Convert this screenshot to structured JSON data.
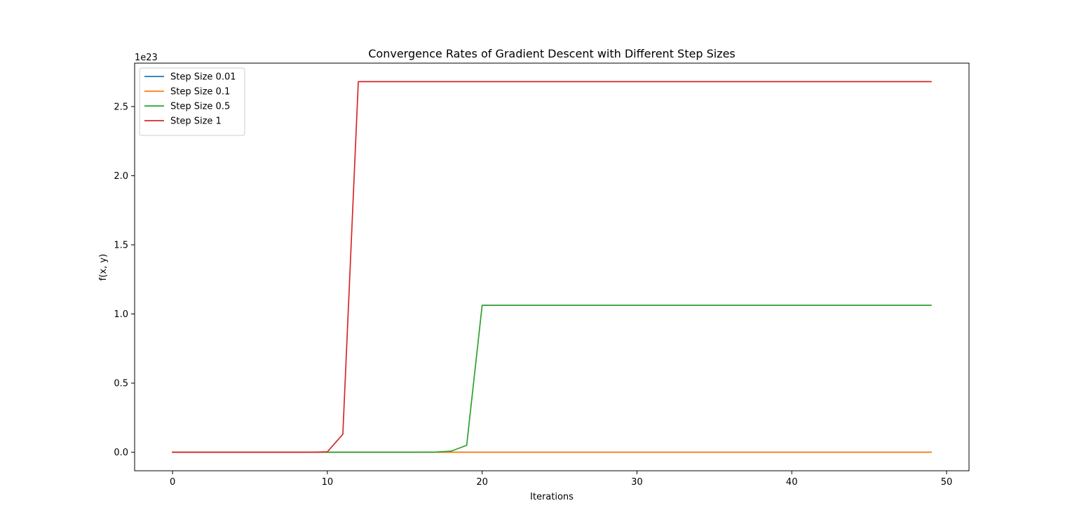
{
  "chart_data": {
    "type": "line",
    "title": "Convergence Rates of Gradient Descent with Different Step Sizes",
    "xlabel": "Iterations",
    "ylabel": "f(x, y)",
    "y_offset_label": "1e23",
    "y_scale": 1e+23,
    "xlim": [
      -2.45,
      51.45
    ],
    "ylim": [
      -0.134,
      2.814
    ],
    "x_ticks": [
      0,
      10,
      20,
      30,
      40,
      50
    ],
    "x_tick_labels": [
      "0",
      "10",
      "20",
      "30",
      "40",
      "50"
    ],
    "y_ticks": [
      0,
      0.5,
      1.0,
      1.5,
      2.0,
      2.5
    ],
    "y_tick_labels": [
      "0.0",
      "0.5",
      "1.0",
      "1.5",
      "2.0",
      "2.5"
    ],
    "grid": false,
    "legend_position": "upper-left",
    "x": [
      0,
      1,
      2,
      3,
      4,
      5,
      6,
      7,
      8,
      9,
      10,
      11,
      12,
      13,
      14,
      15,
      16,
      17,
      18,
      19,
      20,
      21,
      22,
      23,
      24,
      25,
      26,
      27,
      28,
      29,
      30,
      31,
      32,
      33,
      34,
      35,
      36,
      37,
      38,
      39,
      40,
      41,
      42,
      43,
      44,
      45,
      46,
      47,
      48,
      49
    ],
    "series": [
      {
        "name": "Step Size 0.01",
        "color": "#1f77b4",
        "values": [
          0,
          0,
          0,
          0,
          0,
          0,
          0,
          0,
          0,
          0,
          0,
          0,
          0,
          0,
          0,
          0,
          0,
          0,
          0,
          0,
          0,
          0,
          0,
          0,
          0,
          0,
          0,
          0,
          0,
          0,
          0,
          0,
          0,
          0,
          0,
          0,
          0,
          0,
          0,
          0,
          0,
          0,
          0,
          0,
          0,
          0,
          0,
          0,
          0,
          0
        ]
      },
      {
        "name": "Step Size 0.1",
        "color": "#ff7f0e",
        "values": [
          0,
          0,
          0,
          0,
          0,
          0,
          0,
          0,
          0,
          0,
          0,
          0,
          0,
          0,
          0,
          0,
          0,
          0,
          0,
          0,
          0,
          0,
          0,
          0,
          0,
          0,
          0,
          0,
          0,
          0,
          0,
          0,
          0,
          0,
          0,
          0,
          0,
          0,
          0,
          0,
          0,
          0,
          0,
          0,
          0,
          0,
          0,
          0,
          0,
          0
        ]
      },
      {
        "name": "Step Size 0.5",
        "color": "#2ca02c",
        "values": [
          0,
          0,
          0,
          0,
          0,
          0,
          0,
          0,
          0,
          0,
          0,
          0,
          0,
          0,
          0,
          0,
          0,
          0.001,
          0.008,
          0.05,
          1.063,
          1.063,
          1.063,
          1.063,
          1.063,
          1.063,
          1.063,
          1.063,
          1.063,
          1.063,
          1.063,
          1.063,
          1.063,
          1.063,
          1.063,
          1.063,
          1.063,
          1.063,
          1.063,
          1.063,
          1.063,
          1.063,
          1.063,
          1.063,
          1.063,
          1.063,
          1.063,
          1.063,
          1.063,
          1.063
        ]
      },
      {
        "name": "Step Size 1",
        "color": "#d62728",
        "values": [
          0,
          0,
          0,
          0,
          0,
          0,
          0,
          0,
          0,
          0,
          0.003,
          0.13,
          2.68,
          2.68,
          2.68,
          2.68,
          2.68,
          2.68,
          2.68,
          2.68,
          2.68,
          2.68,
          2.68,
          2.68,
          2.68,
          2.68,
          2.68,
          2.68,
          2.68,
          2.68,
          2.68,
          2.68,
          2.68,
          2.68,
          2.68,
          2.68,
          2.68,
          2.68,
          2.68,
          2.68,
          2.68,
          2.68,
          2.68,
          2.68,
          2.68,
          2.68,
          2.68,
          2.68,
          2.68,
          2.68
        ]
      }
    ]
  }
}
